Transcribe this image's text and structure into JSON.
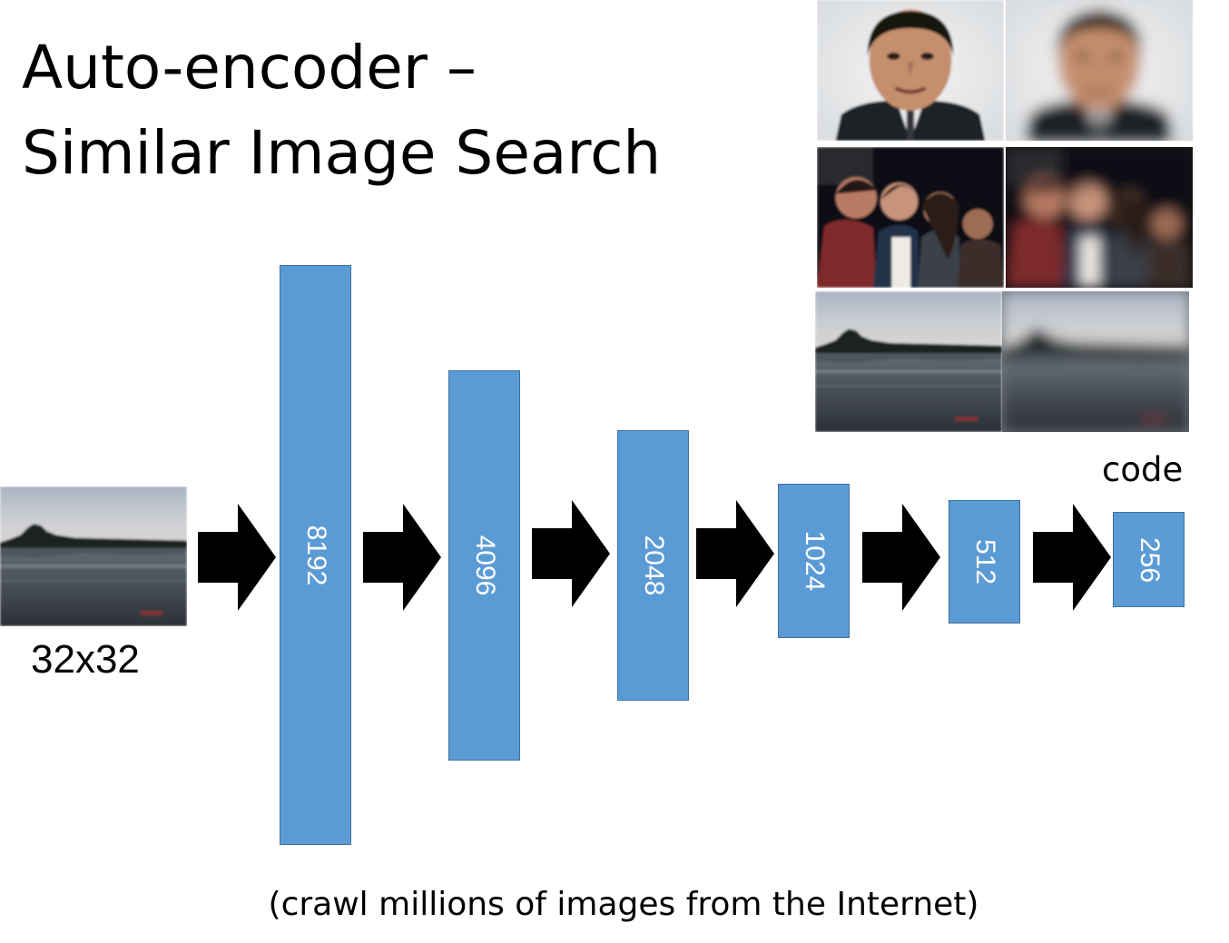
{
  "slide": {
    "title_line1": "Auto-encoder –",
    "title_line2": "Similar Image Search",
    "input_label": "32x32",
    "code_label": "code",
    "caption": "(crawl millions of images from the Internet)"
  },
  "layers": [
    {
      "label": "8192"
    },
    {
      "label": "4096"
    },
    {
      "label": "2048"
    },
    {
      "label": "1024"
    },
    {
      "label": "512"
    },
    {
      "label": "256"
    }
  ],
  "thumbnails": [
    {
      "icon": "face-photo-icon"
    },
    {
      "icon": "face-reconstruction-icon"
    },
    {
      "icon": "group-photo-icon"
    },
    {
      "icon": "group-reconstruction-icon"
    },
    {
      "icon": "lake-photo-icon"
    },
    {
      "icon": "lake-reconstruction-icon"
    }
  ],
  "colors": {
    "layer_fill": "#5b9bd5",
    "layer_border": "#41719c",
    "arrow": "#000000"
  }
}
